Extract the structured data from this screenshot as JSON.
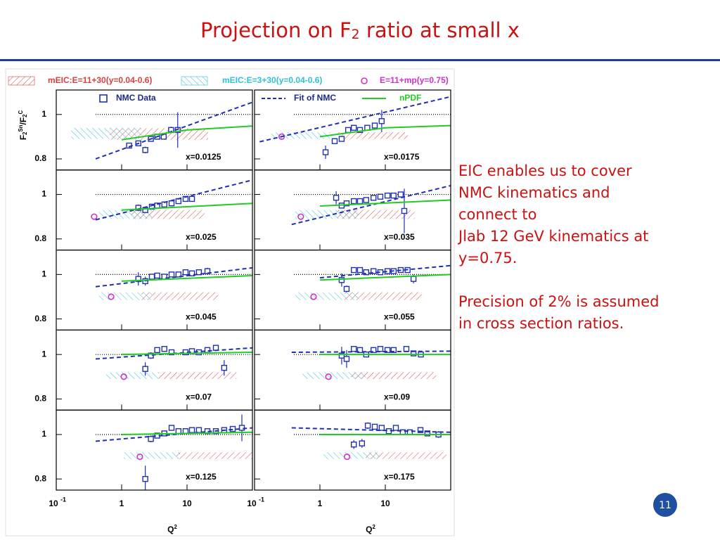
{
  "title": [
    {
      "text": "Projection on F"
    },
    {
      "text": "2",
      "sub": true
    },
    {
      "text": " ratio at small x"
    }
  ],
  "notes": [
    [
      "EIC enables us to cover",
      "NMC kinematics and",
      "connect to",
      "Jlab 12 GeV kinematics at",
      "y=0.75."
    ],
    [
      "Precision of 2% is assumed",
      "in cross section ratios."
    ]
  ],
  "page_number": "11",
  "chart_data": {
    "type": "scatter",
    "xlog": true,
    "xlim": [
      0.1,
      100
    ],
    "xticks": [
      {
        "value": 0.1,
        "label": "10",
        "sup": "-1"
      },
      1,
      10
    ],
    "ylim": [
      0.75,
      1.11
    ],
    "yticks": [
      0.8,
      1
    ],
    "reference": {
      "y": 1,
      "x": [
        0.4,
        100
      ]
    },
    "xlabel": [
      {
        "text": "Q"
      },
      {
        "text": "2",
        "sup": true
      }
    ],
    "ylabel": [
      {
        "text": "F"
      },
      {
        "text": "2",
        "sub": true
      },
      {
        "text": "Sn",
        "sup": true
      },
      {
        "text": "/F"
      },
      {
        "text": "2",
        "sub": true
      },
      {
        "text": "C",
        "sup": true
      }
    ],
    "series": [
      {
        "name": "mEIC:E=11+30(y=0.04-0.6)",
        "color": "#d84040",
        "style": "hatch"
      },
      {
        "name": "mEIC:E=3+30(y=0.04-0.6)",
        "color": "#30c0d8",
        "style": "hatch"
      },
      {
        "name": "E=11+mp(y=0.75)",
        "color": "#cc33cc",
        "style": "circle"
      },
      {
        "name": "NMC Data",
        "color": "#2030b0",
        "style": "square"
      },
      {
        "name": "Fit of NMC",
        "color": "#2030b0",
        "style": "dashed"
      },
      {
        "name": "nPDF",
        "color": "#22cc22",
        "style": "solid"
      }
    ],
    "panels": [
      {
        "label": "x=0.0125",
        "series": [
          {
            "x": [
              0.66,
              21
            ],
            "y": [
              0.886,
              0.938
            ]
          },
          {
            "x": [
              0.17,
              2
            ],
            "y": [
              0.89,
              0.94
            ]
          },
          {
            "x": [],
            "y": []
          },
          {
            "x": [
              1.3,
              1.8,
              2.3,
              2.8,
              3.5,
              4.4,
              5.7,
              7.2
            ],
            "y": [
              0.86,
              0.87,
              0.84,
              0.89,
              0.9,
              0.9,
              0.93,
              0.93
            ],
            "err": [
              0.01,
              0.01,
              0.015,
              0.01,
              0.01,
              0.01,
              0.015,
              0.08
            ]
          },
          {
            "x": [
              0.4,
              100
            ],
            "y": [
              0.8,
              1.055
            ]
          },
          {
            "x": [
              1,
              10,
              100
            ],
            "y": [
              0.886,
              0.93,
              0.948
            ]
          }
        ]
      },
      {
        "label": "x=0.0175",
        "series": [
          {
            "x": [
              1.86,
              22
            ],
            "y": [
              0.89,
              0.92
            ]
          },
          {
            "x": [
              0.18,
              1.45
            ],
            "y": [
              0.89,
              0.92
            ]
          },
          {
            "x": [
              0.26
            ],
            "y": [
              0.9
            ]
          },
          {
            "x": [
              1.22,
              1.68,
              2.15,
              2.7,
              3.3,
              4.1,
              5.3,
              6.9,
              8.8
            ],
            "y": [
              0.83,
              0.88,
              0.89,
              0.93,
              0.94,
              0.93,
              0.94,
              0.95,
              0.97
            ],
            "err": [
              0.03,
              0.01,
              0.01,
              0.01,
              0.01,
              0.01,
              0.01,
              0.01,
              0.05
            ]
          },
          {
            "x": [
              0.12,
              100
            ],
            "y": [
              0.877,
              1.08
            ]
          },
          {
            "x": [
              1,
              10,
              100
            ],
            "y": [
              0.9,
              0.94,
              0.95
            ]
          }
        ]
      },
      {
        "label": "x=0.025",
        "series": [
          {
            "x": [
              1.4,
              18.5
            ],
            "y": [
              0.89,
              0.93
            ]
          },
          {
            "x": [
              0.45,
              2.9
            ],
            "y": [
              0.89,
              0.93
            ]
          },
          {
            "x": [
              0.38
            ],
            "y": [
              0.9
            ]
          },
          {
            "x": [
              1.8,
              2.3,
              2.9,
              3.5,
              4.5,
              5.8,
              7.4,
              9.5,
              11.9
            ],
            "y": [
              0.94,
              0.93,
              0.945,
              0.95,
              0.955,
              0.96,
              0.97,
              0.98,
              0.98
            ],
            "err": [
              0.015,
              0.01,
              0.01,
              0.01,
              0.01,
              0.01,
              0.01,
              0.01,
              0.01
            ]
          },
          {
            "x": [
              0.4,
              100
            ],
            "y": [
              0.886,
              1.065
            ]
          },
          {
            "x": [
              1,
              100
            ],
            "y": [
              0.93,
              0.96
            ]
          }
        ]
      },
      {
        "label": "x=0.035",
        "series": [
          {
            "x": [
              1.86,
              28
            ],
            "y": [
              0.89,
              0.93
            ]
          },
          {
            "x": [
              0.42,
              3.9
            ],
            "y": [
              0.89,
              0.93
            ]
          },
          {
            "x": [
              0.51
            ],
            "y": [
              0.9
            ]
          },
          {
            "x": [
              1.77,
              2.15,
              2.56,
              3.3,
              4.1,
              5.1,
              6.6,
              8.4,
              10.8,
              13.4,
              17.2,
              19.5
            ],
            "y": [
              0.985,
              0.95,
              0.96,
              0.97,
              0.97,
              0.975,
              0.985,
              0.99,
              0.995,
              0.995,
              1.0,
              0.926
            ],
            "err": [
              0.03,
              0.01,
              0.01,
              0.01,
              0.01,
              0.01,
              0.01,
              0.01,
              0.01,
              0.01,
              0.01,
              0.1
            ]
          },
          {
            "x": [
              0.37,
              100
            ],
            "y": [
              0.865,
              1.04
            ]
          },
          {
            "x": [
              1,
              100
            ],
            "y": [
              0.948,
              0.975
            ]
          }
        ]
      },
      {
        "label": "x=0.045",
        "series": [
          {
            "x": [
              2,
              30
            ],
            "y": [
              0.885,
              0.92
            ]
          },
          {
            "x": [
              0.45,
              2.9
            ],
            "y": [
              0.885,
              0.92
            ]
          },
          {
            "x": [
              0.69
            ],
            "y": [
              0.9
            ]
          },
          {
            "x": [
              1.8,
              2.3,
              2.9,
              3.5,
              4.5,
              5.8,
              7.4,
              9.5,
              11.9,
              15.2,
              20.5
            ],
            "y": [
              0.98,
              0.97,
              0.99,
              0.995,
              0.99,
              1.0,
              1.0,
              1.01,
              1.005,
              1.01,
              1.015
            ],
            "err": [
              0.03,
              0.02,
              0.01,
              0.01,
              0.01,
              0.01,
              0.01,
              0.01,
              0.01,
              0.01,
              0.015
            ]
          },
          {
            "x": [
              0.4,
              100
            ],
            "y": [
              0.945,
              1.03
            ]
          },
          {
            "x": [
              1,
              100
            ],
            "y": [
              0.97,
              0.995
            ]
          }
        ]
      },
      {
        "label": "x=0.055",
        "series": [
          {
            "x": [
              2.4,
              36
            ],
            "y": [
              0.885,
              0.92
            ]
          },
          {
            "x": [
              0.42,
              3.9
            ],
            "y": [
              0.885,
              0.92
            ]
          },
          {
            "x": [
              0.8
            ],
            "y": [
              0.9
            ]
          },
          {
            "x": [
              2.15,
              2.56,
              3.3,
              4.1,
              5.1,
              6.6,
              8.4,
              10.8,
              13.4,
              17.2,
              21.9,
              27
            ],
            "y": [
              0.975,
              0.935,
              1.02,
              1.02,
              1.01,
              1.015,
              1.01,
              1.015,
              1.015,
              1.02,
              1.02,
              0.98
            ],
            "err": [
              0.03,
              0.015,
              0.01,
              0.01,
              0.01,
              0.01,
              0.01,
              0.01,
              0.01,
              0.01,
              0.01,
              0.02
            ]
          },
          {
            "x": [
              1,
              100
            ],
            "y": [
              0.985,
              1.04
            ]
          },
          {
            "x": [
              1,
              100
            ],
            "y": [
              0.975,
              1.0
            ]
          }
        ]
      },
      {
        "label": "x=0.07",
        "series": [
          {
            "x": [
              3.7,
              57
            ],
            "y": [
              0.89,
              0.92
            ]
          },
          {
            "x": [
              0.58,
              3.7
            ],
            "y": [
              0.89,
              0.92
            ]
          },
          {
            "x": [
              1.08
            ],
            "y": [
              0.9
            ]
          },
          {
            "x": [
              2.3,
              2.8,
              3.5,
              4.5,
              5.8,
              9.5,
              11.9,
              15.2,
              20.5,
              27.6,
              37
            ],
            "y": [
              0.935,
              0.995,
              1.02,
              1.025,
              1.01,
              1.01,
              1.015,
              1.01,
              1.02,
              1.03,
              0.94
            ],
            "err": [
              0.03,
              0.015,
              0.01,
              0.01,
              0.01,
              0.01,
              0.01,
              0.01,
              0.01,
              0.01,
              0.035
            ]
          },
          {
            "x": [
              0.4,
              100
            ],
            "y": [
              0.98,
              1.03
            ]
          },
          {
            "x": [
              1,
              100
            ],
            "y": [
              1.0,
              1.01
            ]
          }
        ]
      },
      {
        "label": "x=0.09",
        "series": [
          {
            "x": [
              3,
              60
            ],
            "y": [
              0.89,
              0.92
            ]
          },
          {
            "x": [
              0.54,
              5
            ],
            "y": [
              0.89,
              0.92
            ]
          },
          {
            "x": [
              1.35
            ],
            "y": [
              0.9
            ]
          },
          {
            "x": [
              2.15,
              2.56,
              3.3,
              4.1,
              5.1,
              6.6,
              8.4,
              10.8,
              13.4,
              21,
              27,
              35
            ],
            "y": [
              0.995,
              0.98,
              1.025,
              1.02,
              1.0,
              1.02,
              1.025,
              1.02,
              1.02,
              1.025,
              1.005,
              1.0
            ],
            "err": [
              0.04,
              0.04,
              0.01,
              0.01,
              0.01,
              0.01,
              0.01,
              0.01,
              0.01,
              0.01,
              0.01,
              0.01
            ]
          },
          {
            "x": [
              0.37,
              100
            ],
            "y": [
              1.01,
              1.015
            ]
          },
          {
            "x": [
              1,
              100
            ],
            "y": [
              1.0,
              1.0
            ]
          }
        ]
      },
      {
        "label": "x=0.125",
        "series": [
          {
            "x": [
              6.9,
              100
            ],
            "y": [
              0.89,
              0.92
            ]
          },
          {
            "x": [
              1.08,
              7.8
            ],
            "y": [
              0.89,
              0.92
            ]
          },
          {
            "x": [
              1.9
            ],
            "y": [
              0.9
            ]
          },
          {
            "x": [
              2.3,
              2.8,
              3.5,
              4.5,
              5.8,
              7.4,
              9.5,
              11.9,
              15.2,
              20.5,
              27.6,
              37,
              50,
              69
            ],
            "y": [
              0.8,
              0.98,
              0.995,
              1.005,
              1.03,
              1.015,
              1.015,
              1.02,
              1.02,
              1.015,
              1.015,
              1.02,
              1.025,
              1.03
            ],
            "err": [
              0.06,
              0.015,
              0.01,
              0.01,
              0.01,
              0.01,
              0.01,
              0.01,
              0.01,
              0.01,
              0.01,
              0.01,
              0.01,
              0.06
            ]
          },
          {
            "x": [
              0.4,
              100
            ],
            "y": [
              0.97,
              1.03
            ]
          },
          {
            "x": [
              1,
              100
            ],
            "y": [
              1.0,
              1.01
            ]
          }
        ]
      },
      {
        "label": "x=0.175",
        "series": [
          {
            "x": [
              5,
              86
            ],
            "y": [
              0.89,
              0.92
            ]
          },
          {
            "x": [
              1.13,
              8.2
            ],
            "y": [
              0.89,
              0.92
            ]
          },
          {
            "x": [
              2.6
            ],
            "y": [
              0.9
            ]
          },
          {
            "x": [
              3.3,
              4.4,
              5.4,
              6.9,
              8.8,
              11.3,
              14.5,
              18.5,
              23.7,
              34.5,
              44,
              65
            ],
            "y": [
              0.955,
              0.96,
              1.04,
              1.035,
              1.03,
              1.015,
              1.03,
              1.01,
              1.01,
              1.02,
              1.005,
              1.0
            ],
            "err": [
              0.02,
              0.02,
              0.015,
              0.01,
              0.01,
              0.01,
              0.01,
              0.01,
              0.01,
              0.01,
              0.01,
              0.015
            ]
          },
          {
            "x": [
              0.37,
              100
            ],
            "y": [
              1.03,
              1.01
            ]
          },
          {
            "x": [
              1,
              100
            ],
            "y": [
              1.0,
              1.0
            ]
          }
        ]
      }
    ]
  }
}
